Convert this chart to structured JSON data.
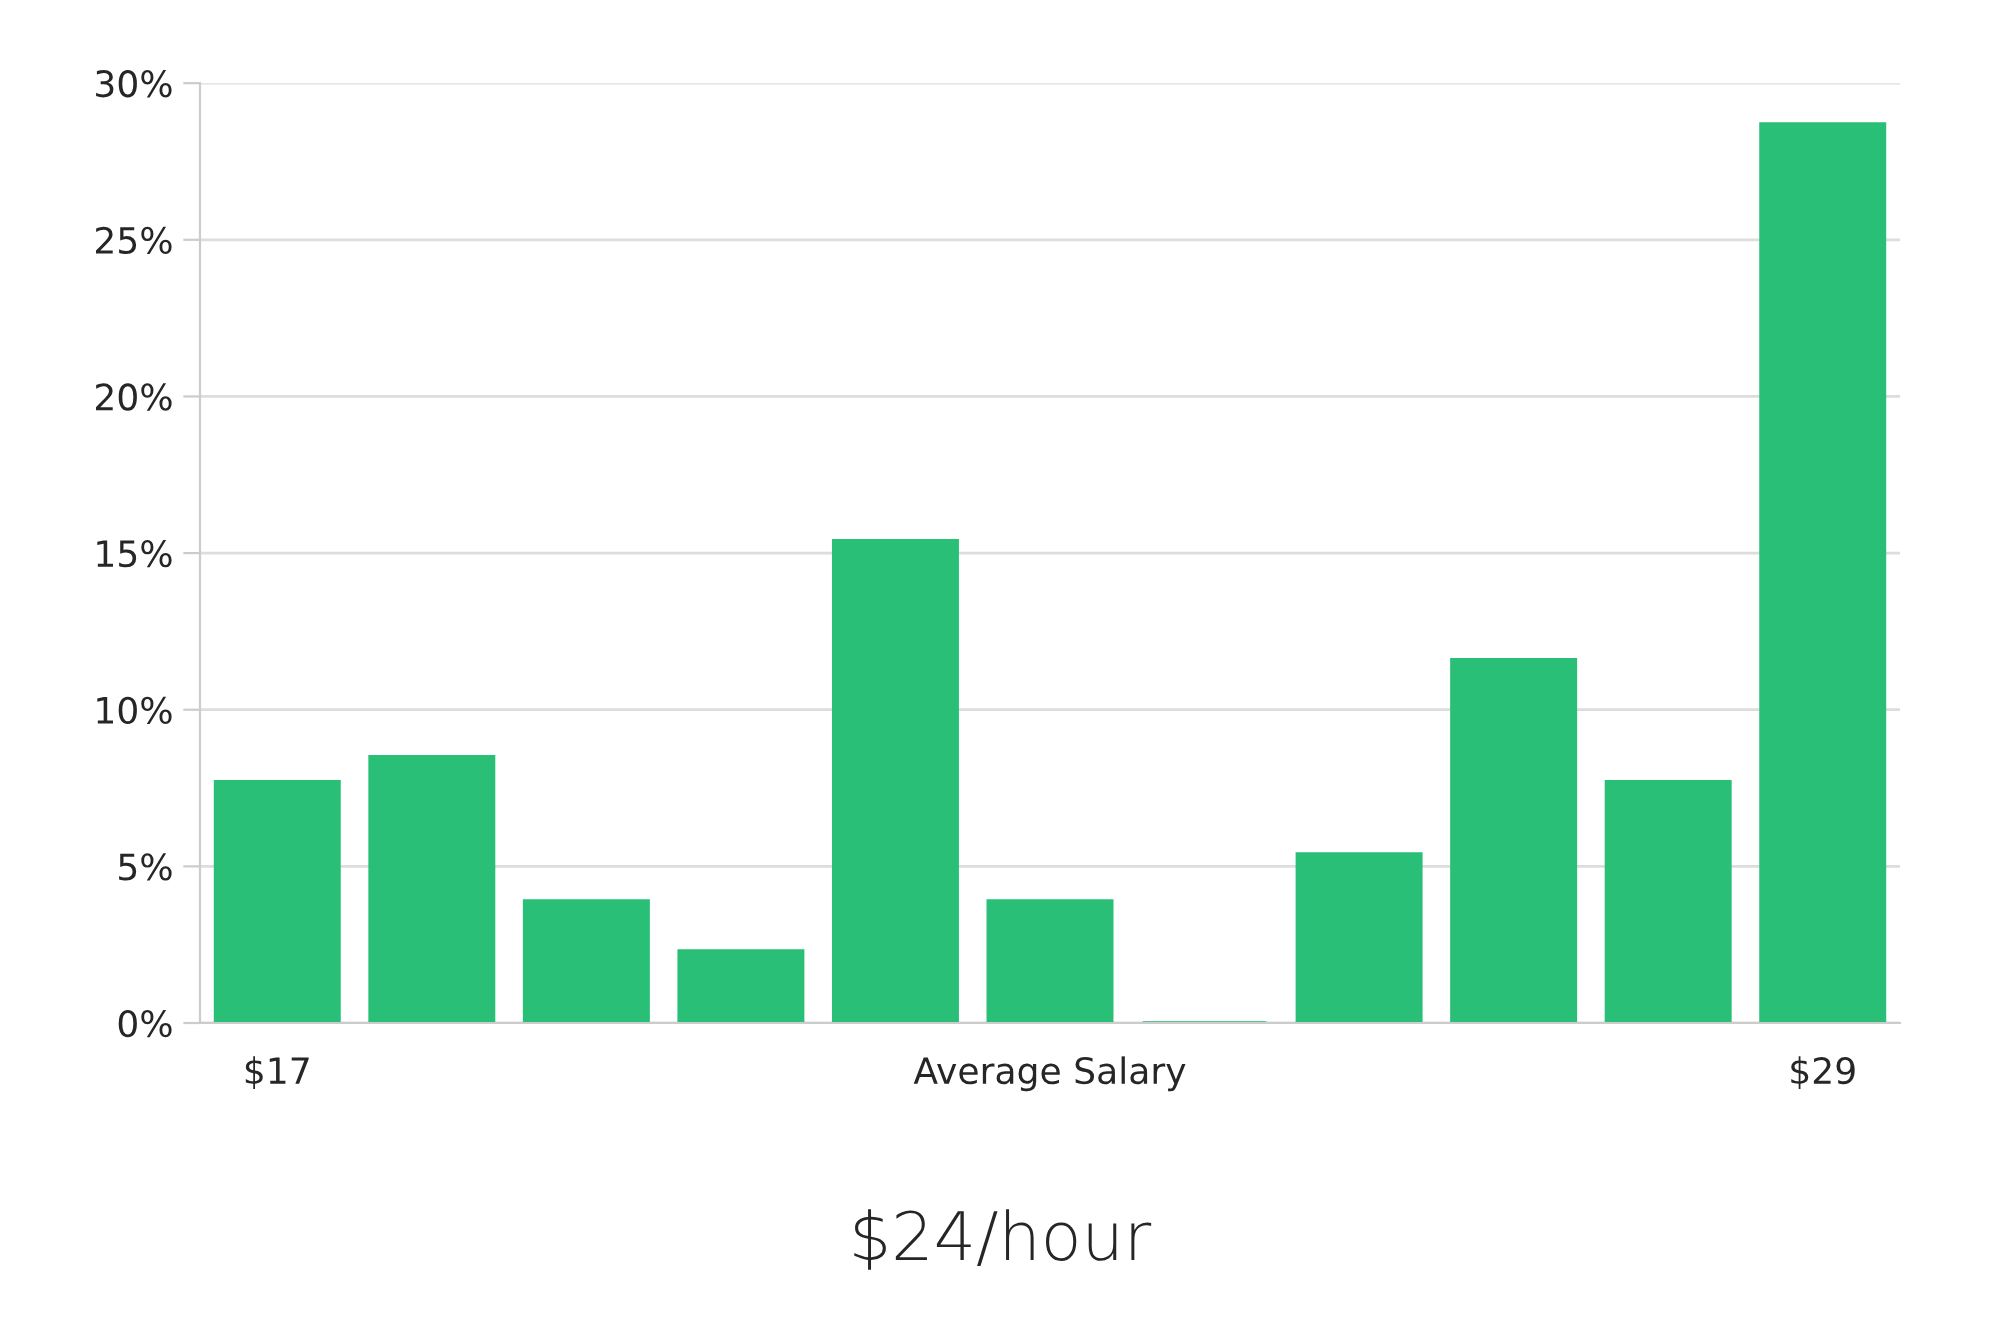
{
  "chart_data": {
    "type": "bar",
    "title": "$24/hour",
    "categories": [
      "$17",
      null,
      null,
      null,
      null,
      "Average Salary",
      null,
      null,
      null,
      null,
      "$29"
    ],
    "values": [
      7.7,
      8.5,
      3.9,
      2.3,
      15.4,
      3.9,
      0,
      5.4,
      11.6,
      7.7,
      28.7
    ],
    "color": "#2abf77",
    "ylim": [
      0,
      30
    ],
    "yticks": [
      {
        "value": 0,
        "label": "0%"
      },
      {
        "value": 5,
        "label": "5%"
      },
      {
        "value": 10,
        "label": "10%"
      },
      {
        "value": 15,
        "label": "15%"
      },
      {
        "value": 20,
        "label": "20%"
      },
      {
        "value": 25,
        "label": "25%"
      },
      {
        "value": 30,
        "label": "30%"
      }
    ],
    "grid": "y",
    "legend": false
  }
}
